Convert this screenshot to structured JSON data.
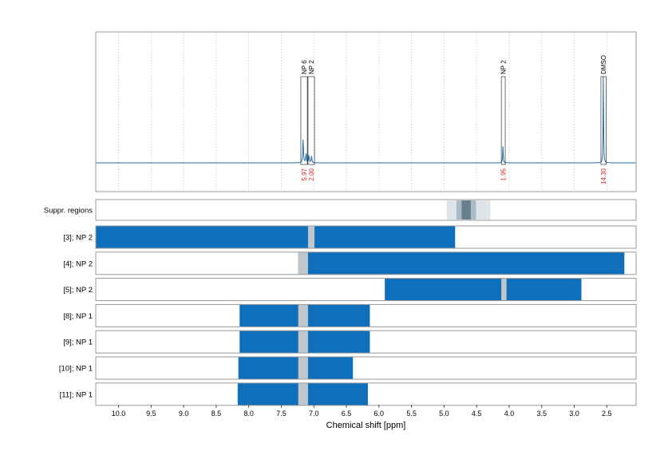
{
  "chart_data": {
    "type": "spectrum-with-range-tracks",
    "xlabel": "Chemical shift [ppm]",
    "x_range": [
      10.35,
      2.05
    ],
    "x_ticks": [
      10.0,
      9.5,
      9.0,
      8.5,
      8.0,
      7.5,
      7.0,
      6.5,
      6.0,
      5.5,
      5.0,
      4.5,
      4.0,
      3.5,
      3.0,
      2.5
    ],
    "x_tick_labels": [
      "10.0",
      "9.5",
      "9.0",
      "8.5",
      "8.0",
      "7.5",
      "7.0",
      "6.5",
      "6.0",
      "5.5",
      "5.0",
      "4.5",
      "4.0",
      "3.5",
      "3.0",
      "2.5"
    ],
    "grid": true,
    "spectrum": {
      "peaks": [
        {
          "center": 7.165,
          "height": 0.16,
          "width": 0.006
        },
        {
          "center": 7.12,
          "height": 0.06,
          "width": 0.006
        },
        {
          "center": 7.075,
          "height": 0.05,
          "width": 0.006
        },
        {
          "center": 7.035,
          "height": 0.045,
          "width": 0.006
        },
        {
          "center": 4.095,
          "height": 0.11,
          "width": 0.005
        },
        {
          "center": 2.553,
          "height": 0.6,
          "width": 0.004
        }
      ]
    },
    "annotations": [
      {
        "label": "NP 6",
        "from": 7.2,
        "to": 7.1,
        "integral": "5.97"
      },
      {
        "label": "NP 2",
        "from": 7.09,
        "to": 6.99,
        "integral": "2.00"
      },
      {
        "label": "NP 2",
        "from": 4.12,
        "to": 4.06,
        "integral": "1.95"
      },
      {
        "label": "DMSO",
        "from": 2.59,
        "to": 2.51,
        "integral": "14.30"
      }
    ],
    "suppression_track": {
      "label": "Suppr. regions",
      "bands": [
        {
          "from": 4.96,
          "to": 4.29,
          "level": 1
        },
        {
          "from": 4.81,
          "to": 4.51,
          "level": 2
        },
        {
          "from": 4.73,
          "to": 4.59,
          "level": 3
        }
      ]
    },
    "tracks": [
      {
        "label": "[3]; NP 2",
        "from": 10.35,
        "to": 4.83,
        "excluded": [
          [
            7.09,
            6.99
          ]
        ]
      },
      {
        "label": "[4]; NP 2",
        "from": 7.24,
        "to": 2.23,
        "excluded": [
          [
            7.24,
            7.09
          ]
        ]
      },
      {
        "label": "[5]; NP 2",
        "from": 5.91,
        "to": 2.89,
        "excluded": [
          [
            4.12,
            4.04
          ]
        ]
      },
      {
        "label": "[8]; NP 1",
        "from": 8.14,
        "to": 6.14,
        "excluded": [
          [
            7.24,
            7.09
          ]
        ]
      },
      {
        "label": "[9]; NP 1",
        "from": 8.14,
        "to": 6.14,
        "excluded": [
          [
            7.24,
            7.09
          ]
        ]
      },
      {
        "label": "[10]; NP 1",
        "from": 8.16,
        "to": 6.4,
        "excluded": [
          [
            7.24,
            7.09
          ]
        ]
      },
      {
        "label": "[11]; NP 1",
        "from": 8.17,
        "to": 6.17,
        "excluded": [
          [
            7.24,
            7.09
          ]
        ]
      }
    ],
    "colors": {
      "spectrum_line": "#1f6fa8",
      "range_fill": "#0f6fbb",
      "excluded_fill": "#bfc7cc",
      "integral_text": "#d62728",
      "frame": "#9a9a9a",
      "grid": "#c8c8c8",
      "suppression_levels": [
        "#dde4ea",
        "#aabac6",
        "#6a7f8c"
      ]
    }
  }
}
